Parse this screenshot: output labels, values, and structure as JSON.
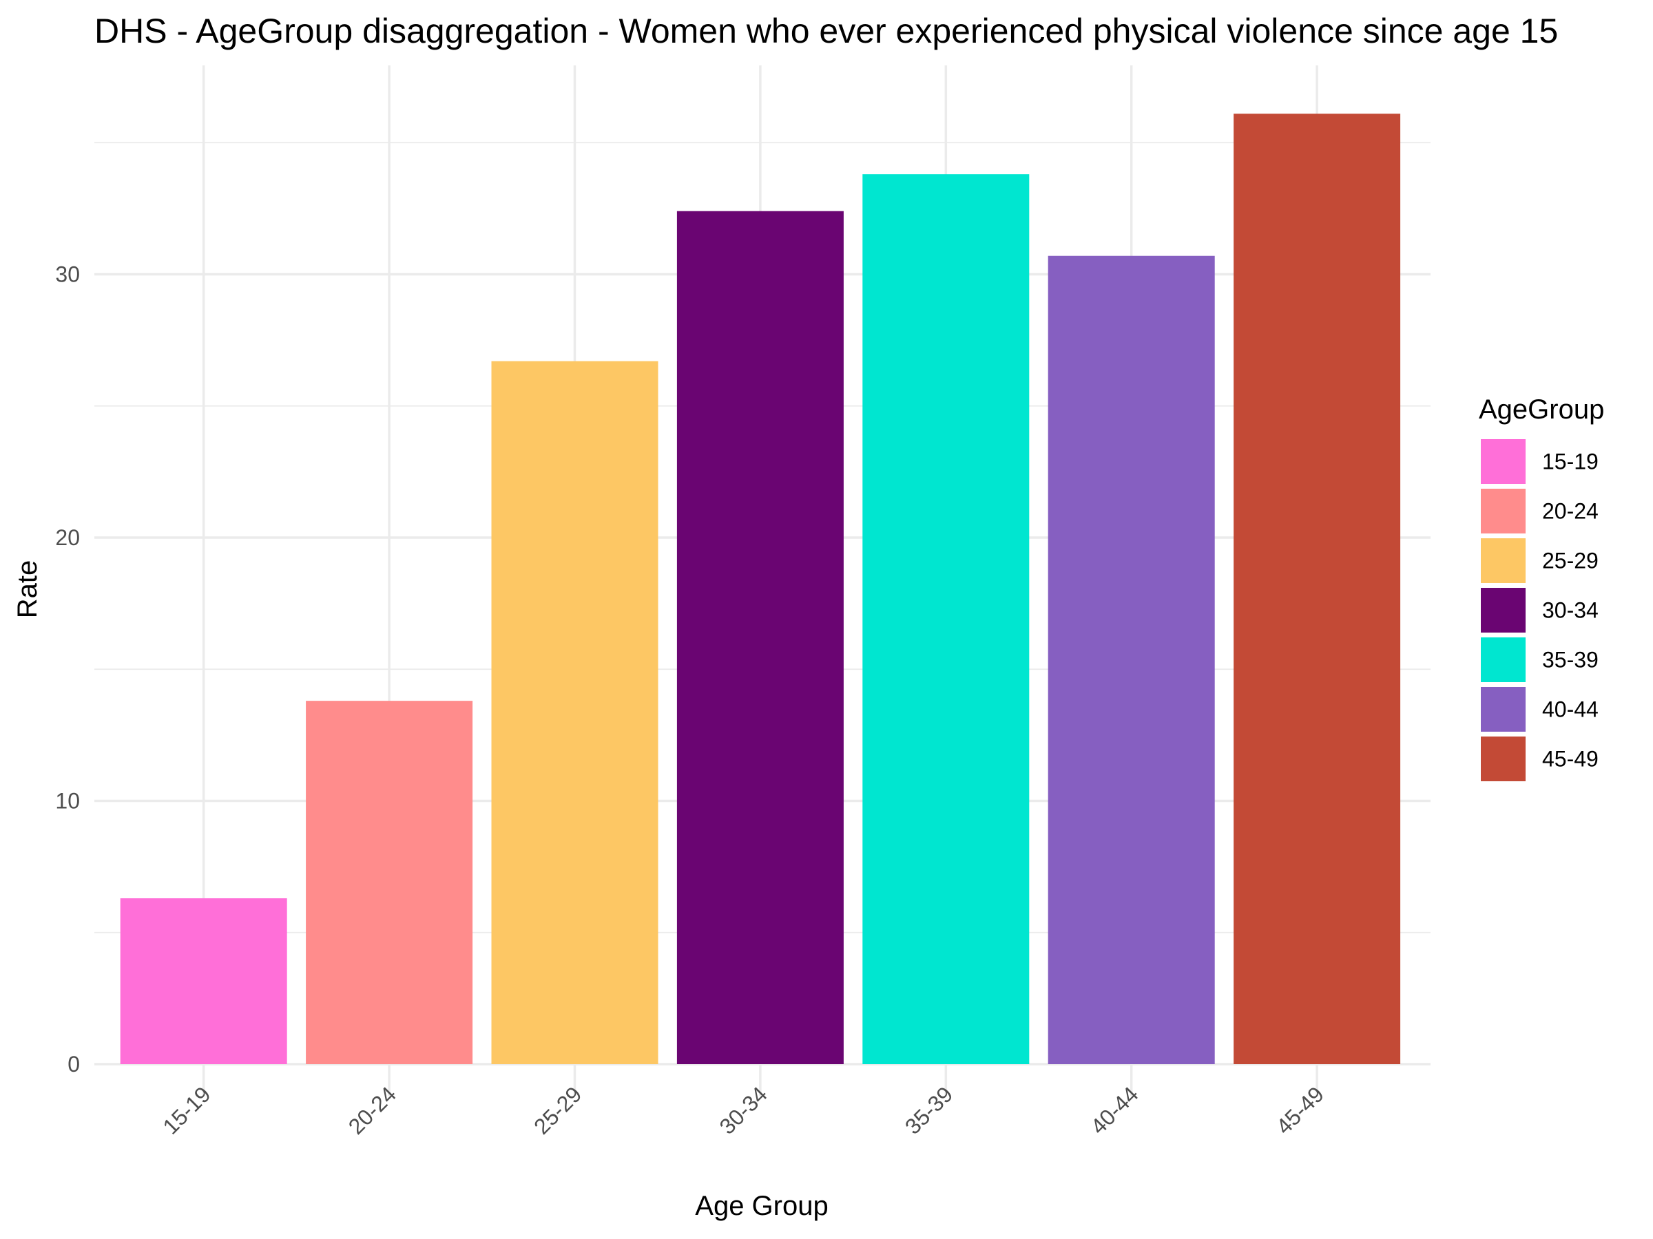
{
  "chart_data": {
    "type": "bar",
    "title": "DHS - AgeGroup disaggregation -  Women who ever experienced physical violence since age 15",
    "xlabel": "Age Group",
    "ylabel": "Rate",
    "categories": [
      "15-19",
      "20-24",
      "25-29",
      "30-34",
      "35-39",
      "40-44",
      "45-49"
    ],
    "values": [
      6.3,
      13.8,
      26.7,
      32.4,
      33.8,
      30.7,
      36.1
    ],
    "colors": [
      "#FF6FD8",
      "#FF8C8C",
      "#FDC764",
      "#6A0572",
      "#00E6D0",
      "#865FC1",
      "#C34A36"
    ],
    "ylim": [
      0,
      37.9
    ],
    "yticks": [
      0,
      10,
      20,
      30
    ],
    "grid": true,
    "legend": {
      "title": "AgeGroup",
      "position": "right"
    }
  }
}
